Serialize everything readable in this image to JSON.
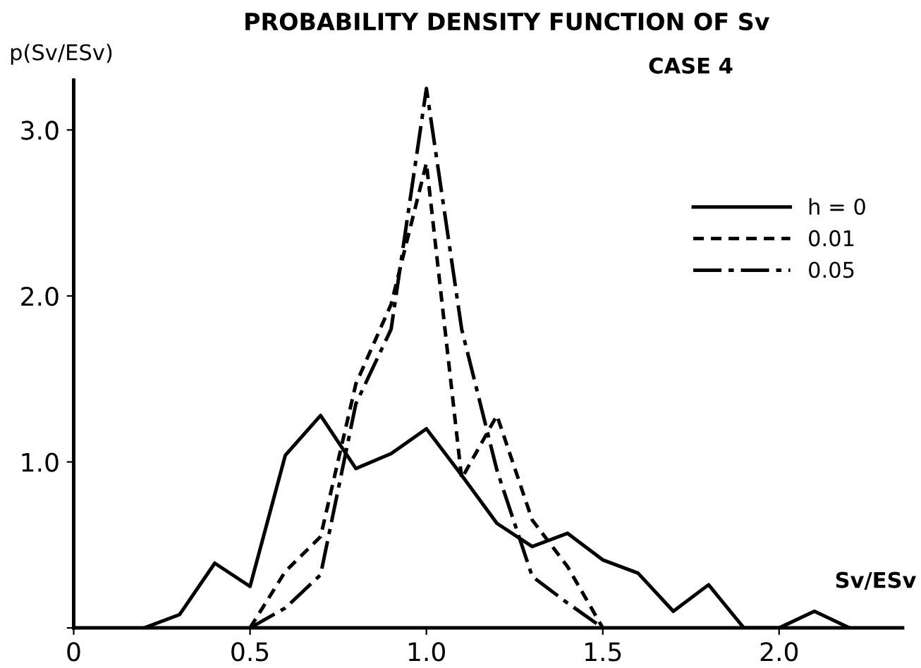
{
  "chart_data": {
    "type": "line",
    "title": "PROBABILITY DENSITY FUNCTION OF Sv",
    "subtitle": "CASE 4",
    "xlabel": "Sv/ESv",
    "ylabel": "p(Sv/ESv)",
    "legend": "top right",
    "grid": false,
    "marker": "none",
    "xlim": [
      0,
      2.35
    ],
    "ylim": [
      0,
      3.3
    ],
    "xticks": [
      0,
      0.5,
      {
        "value": 1.0,
        "label": "1.0"
      },
      1.5,
      {
        "value": 2.0,
        "label": "2.0"
      }
    ],
    "yticks": [
      {
        "value": 0,
        "label": null
      },
      {
        "value": 1.0,
        "label": "1.0"
      },
      {
        "value": 2.0,
        "label": "2.0"
      },
      {
        "value": 3.0,
        "label": "3.0"
      }
    ],
    "series": [
      {
        "name": "h = 0",
        "color": "#000000",
        "line_style": "solid",
        "x": [
          0.2,
          0.3,
          0.4,
          0.5,
          0.6,
          0.7,
          0.8,
          0.9,
          1.0,
          1.1,
          1.2,
          1.3,
          1.4,
          1.5,
          1.6,
          1.7,
          1.8,
          1.9,
          2.0,
          2.1,
          2.2
        ],
        "values": [
          0,
          0.08,
          0.39,
          0.25,
          1.04,
          1.28,
          0.96,
          1.05,
          1.2,
          0.92,
          0.63,
          0.49,
          0.57,
          0.41,
          0.33,
          0.1,
          0.26,
          0,
          0,
          0.1,
          0
        ]
      },
      {
        "name": "0.01",
        "color": "#000000",
        "line_style": "dashed",
        "x": [
          0.5,
          0.6,
          0.7,
          0.8,
          0.9,
          1.0,
          1.1,
          1.2,
          1.3,
          1.4,
          1.5
        ],
        "values": [
          0,
          0.34,
          0.55,
          1.47,
          1.95,
          2.8,
          0.9,
          1.28,
          0.65,
          0.37,
          0
        ]
      },
      {
        "name": "0.05",
        "color": "#000000",
        "line_style": "dashdot",
        "x": [
          0.5,
          0.6,
          0.7,
          0.8,
          0.9,
          1.0,
          1.1,
          1.2,
          1.3,
          1.4,
          1.5
        ],
        "values": [
          0,
          0.12,
          0.32,
          1.35,
          1.8,
          3.25,
          1.8,
          0.95,
          0.31,
          0.15,
          0
        ]
      }
    ]
  }
}
